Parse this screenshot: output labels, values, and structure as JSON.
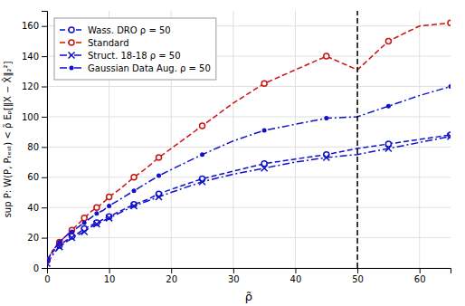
{
  "chart_data": {
    "type": "line",
    "title": "",
    "xlabel": "ρ̃",
    "ylabel": "sup P: W(P, Pₜₑₛₜ) < ρ̃  Eₚ[‖X − X̂‖₂²]",
    "xlim": [
      0,
      65
    ],
    "ylim": [
      0,
      170
    ],
    "xticks": [
      0,
      10,
      20,
      30,
      40,
      50,
      60
    ],
    "yticks": [
      0,
      20,
      40,
      60,
      80,
      100,
      120,
      140,
      160
    ],
    "grid": true,
    "legend": "upper left",
    "vlines": [
      50
    ],
    "x": [
      0,
      1,
      2,
      3,
      4,
      5,
      6,
      7,
      8,
      9,
      10,
      12,
      14,
      16,
      18,
      20,
      25,
      30,
      35,
      40,
      45,
      50,
      55,
      60,
      65
    ],
    "series": [
      {
        "name": "Wass. DRO ρ = 50",
        "color": "#1111cc",
        "line_style": "dashed",
        "marker": "circle-open",
        "values": [
          5,
          11,
          15,
          18,
          21,
          23,
          26,
          28,
          30,
          32,
          34,
          38,
          42,
          45,
          49,
          52,
          59,
          64,
          69,
          72,
          75,
          79,
          82,
          85,
          88
        ]
      },
      {
        "name": "Standard",
        "color": "#cc1111",
        "line_style": "dashed",
        "marker": "circle-open",
        "values": [
          5,
          12,
          17,
          21,
          25,
          29,
          33,
          37,
          40,
          43,
          47,
          53,
          60,
          66,
          73,
          79,
          94,
          109,
          122,
          131,
          140,
          131,
          150,
          160,
          162
        ]
      },
      {
        "name": "Struct. 18-18 ρ = 50",
        "color": "#1111cc",
        "line_style": "dashdot",
        "marker": "x",
        "values": [
          3,
          9,
          14,
          17,
          20,
          22,
          24,
          27,
          29,
          31,
          33,
          37,
          41,
          44,
          47,
          50,
          57,
          62,
          66,
          70,
          73,
          75,
          79,
          83,
          87
        ]
      },
      {
        "name": "Gaussian Data Aug. ρ = 50",
        "color": "#1111cc",
        "line_style": "dashdot",
        "marker": "point",
        "values": [
          5,
          12,
          17,
          21,
          24,
          27,
          30,
          33,
          36,
          38,
          41,
          46,
          51,
          56,
          61,
          65,
          75,
          84,
          91,
          95,
          99,
          100,
          107,
          114,
          120
        ]
      }
    ]
  }
}
